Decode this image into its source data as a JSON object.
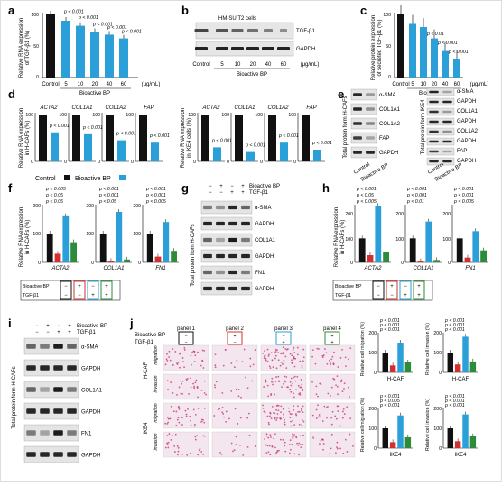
{
  "figure": {
    "panel_letters": [
      "a",
      "b",
      "c",
      "d",
      "e",
      "f",
      "g",
      "h",
      "i",
      "j"
    ],
    "colors": {
      "black": "#111111",
      "blue": "#2a9fd8",
      "red": "#d32f2f",
      "green": "#2e8b3a",
      "tissue": "#c23a78"
    }
  },
  "panel_a": {
    "ylabel_1": "Relative RNA expression",
    "ylabel_2": "of TGF-β1 (%)",
    "xlabel": "Bioactive BP",
    "unit": "(μg/mL)",
    "categories": [
      "Control",
      "5",
      "10",
      "20",
      "40",
      "60"
    ],
    "values": [
      100,
      90,
      82,
      72,
      68,
      62
    ],
    "pvals": [
      "p < 0.001",
      "p < 0.001",
      "p < 0.001",
      "p < 0.001",
      "p < 0.001"
    ],
    "ylim": [
      0,
      100
    ]
  },
  "panel_b": {
    "cell_line": "HM-SUIT2 cells",
    "bands": [
      "TGF-β1",
      "GAPDH"
    ],
    "lanes": [
      "Control",
      "5",
      "10",
      "20",
      "40",
      "60"
    ],
    "unit": "(μg/mL)",
    "xlabel": "Bioactive BP"
  },
  "panel_c": {
    "ylabel_1": "Relative protein expression",
    "ylabel_2": "of secreted TGF-β1 (%)",
    "xlabel": "Bioactive BP",
    "unit": "(μg/mL)",
    "categories": [
      "Control",
      "5",
      "10",
      "20",
      "40",
      "60"
    ],
    "values": [
      100,
      85,
      80,
      62,
      42,
      30
    ],
    "pvals": [
      "p < 0.01",
      "p < 0.001",
      "p < 0.001"
    ],
    "ylim": [
      0,
      100
    ]
  },
  "panel_d": {
    "left_ylabel_1": "Relative RNA expression",
    "left_ylabel_2": "in H-CAFs (%)",
    "right_ylabel_1": "Relative RNA expression",
    "right_ylabel_2": "in IKE4 cells (%)",
    "genes": [
      "ACTA2",
      "COL1A1",
      "COL1A2",
      "FAP"
    ],
    "pvals": [
      "p < 0.001",
      "p < 0.001",
      "p < 0.001",
      "p < 0.001"
    ],
    "legend": [
      "Control",
      "Bioactive BP"
    ],
    "hcaf_values": {
      "control": [
        100,
        100,
        100,
        100
      ],
      "bp": [
        62,
        58,
        45,
        40
      ]
    },
    "ike4_values": {
      "control": [
        100,
        100,
        100,
        100
      ],
      "bp": [
        30,
        20,
        40,
        25
      ]
    }
  },
  "panel_e": {
    "bands_left": [
      "α-SMA",
      "COL1A1",
      "COL1A2",
      "FAP",
      "GAPDH"
    ],
    "bands_right": [
      "α-SMA",
      "GAPDH",
      "COL1A1",
      "GAPDH",
      "COL1A2",
      "GAPDH",
      "FAP",
      "GAPDH"
    ],
    "ylabel_left": "Total protein form H-CAFs",
    "ylabel_right": "Total protein form IKE4",
    "lanes": [
      "Control",
      "Bioactive BP"
    ]
  },
  "panel_f": {
    "ylabel_1": "Relative RNA expression",
    "ylabel_2": "in H-CAFs (%)",
    "genes": [
      "ACTA2",
      "COL1A1",
      "FN1"
    ],
    "pvals": [
      "p < 0.05",
      "p < 0.05",
      "p < 0.005",
      "p < 0.05",
      "p < 0.001",
      "p < 0.001",
      "p < 0.005",
      "p < 0.001",
      "p < 0.001"
    ],
    "values": {
      "acta2": [
        100,
        30,
        160,
        70
      ],
      "col1a1": [
        100,
        5,
        175,
        10
      ],
      "fn1": [
        100,
        20,
        140,
        40
      ]
    },
    "yticks": [
      "200",
      "100",
      "0"
    ],
    "treat_labels": [
      "Bioactive BP",
      "TGF-β1"
    ],
    "treat_bp": [
      "−",
      "+",
      "−",
      "+"
    ],
    "treat_tgf": [
      "−",
      "−",
      "+",
      "+"
    ]
  },
  "panel_g": {
    "treat_labels": [
      "Bioactive BP",
      "TGF-β1"
    ],
    "treat_bp": [
      "−",
      "+",
      "−",
      "+"
    ],
    "treat_tgf": [
      "−",
      "−",
      "+",
      "+"
    ],
    "bands": [
      "α-SMA",
      "GAPDH",
      "COL1A1",
      "GAPDH",
      "FN1",
      "GAPDH"
    ],
    "ylabel": "Total protein from H-CAFs"
  },
  "panel_h": {
    "ylabel_1": "Relative RNA expression",
    "ylabel_2": "in H-CAFs (%)",
    "genes": [
      "ACTA2",
      "COL1A1",
      "FN1"
    ],
    "pvals": [
      "p < 0.005",
      "p < 0.05",
      "p < 0.001",
      "p < 0.01",
      "p < 0.001",
      "p < 0.001",
      "p < 0.005",
      "p < 0.001",
      "p < 0.001"
    ],
    "values": {
      "acta2": [
        100,
        30,
        235,
        45
      ],
      "col1a1": [
        100,
        5,
        170,
        10
      ],
      "fn1": [
        100,
        20,
        130,
        50
      ]
    },
    "yticks": [
      "200",
      "100",
      "0"
    ],
    "treat_labels": [
      "Bioactive BP",
      "TGF-β1"
    ],
    "treat_bp": [
      "−",
      "+",
      "−",
      "+"
    ],
    "treat_tgf": [
      "−",
      "−",
      "+",
      "+"
    ]
  },
  "panel_i": {
    "treat_labels": [
      "Bioactive BP",
      "TGF-β1"
    ],
    "treat_bp": [
      "−",
      "+",
      "−",
      "+"
    ],
    "treat_tgf": [
      "−",
      "−",
      "+",
      "+"
    ],
    "bands": [
      "α-SMA",
      "GAPDH",
      "COL1A1",
      "GAPDH",
      "FN1",
      "GAPDH"
    ],
    "ylabel": "Total protein form H-CAFs"
  },
  "panel_j": {
    "treat_labels": [
      "Bioactive BP",
      "TGF-β1"
    ],
    "panels": [
      "panel 1",
      "panel 2",
      "panel 3",
      "panel 4"
    ],
    "treat_bp": [
      "−",
      "+",
      "−",
      "+"
    ],
    "treat_tgf": [
      "−",
      "−",
      "+",
      "+"
    ],
    "rows": [
      "migration",
      "invasion",
      "migration",
      "invasion"
    ],
    "groups": [
      "H-CAF",
      "IKE4"
    ],
    "charts": [
      {
        "ylabel": "Relative cell migration (%)",
        "xlabel": "H-CAF",
        "values": [
          100,
          35,
          150,
          50
        ],
        "pvals": [
          "p < 0.001",
          "p < 0.001",
          "p < 0.001"
        ]
      },
      {
        "ylabel": "Relative cell invasion (%)",
        "xlabel": "H-CAF",
        "values": [
          100,
          40,
          180,
          55
        ],
        "pvals": [
          "p < 0.001",
          "p < 0.001",
          "p < 0.001"
        ]
      },
      {
        "ylabel": "Relative cell migration (%)",
        "xlabel": "IKE4",
        "values": [
          100,
          30,
          165,
          55
        ],
        "pvals": [
          "p < 0.001",
          "p < 0.005",
          "p < 0.001"
        ]
      },
      {
        "ylabel": "Relative cell invasion (%)",
        "xlabel": "IKE4",
        "values": [
          100,
          35,
          170,
          60
        ],
        "pvals": [
          "p < 0.001",
          "p < 0.001",
          "p < 0.001"
        ]
      }
    ],
    "yticks": [
      "200",
      "100",
      "0"
    ]
  }
}
